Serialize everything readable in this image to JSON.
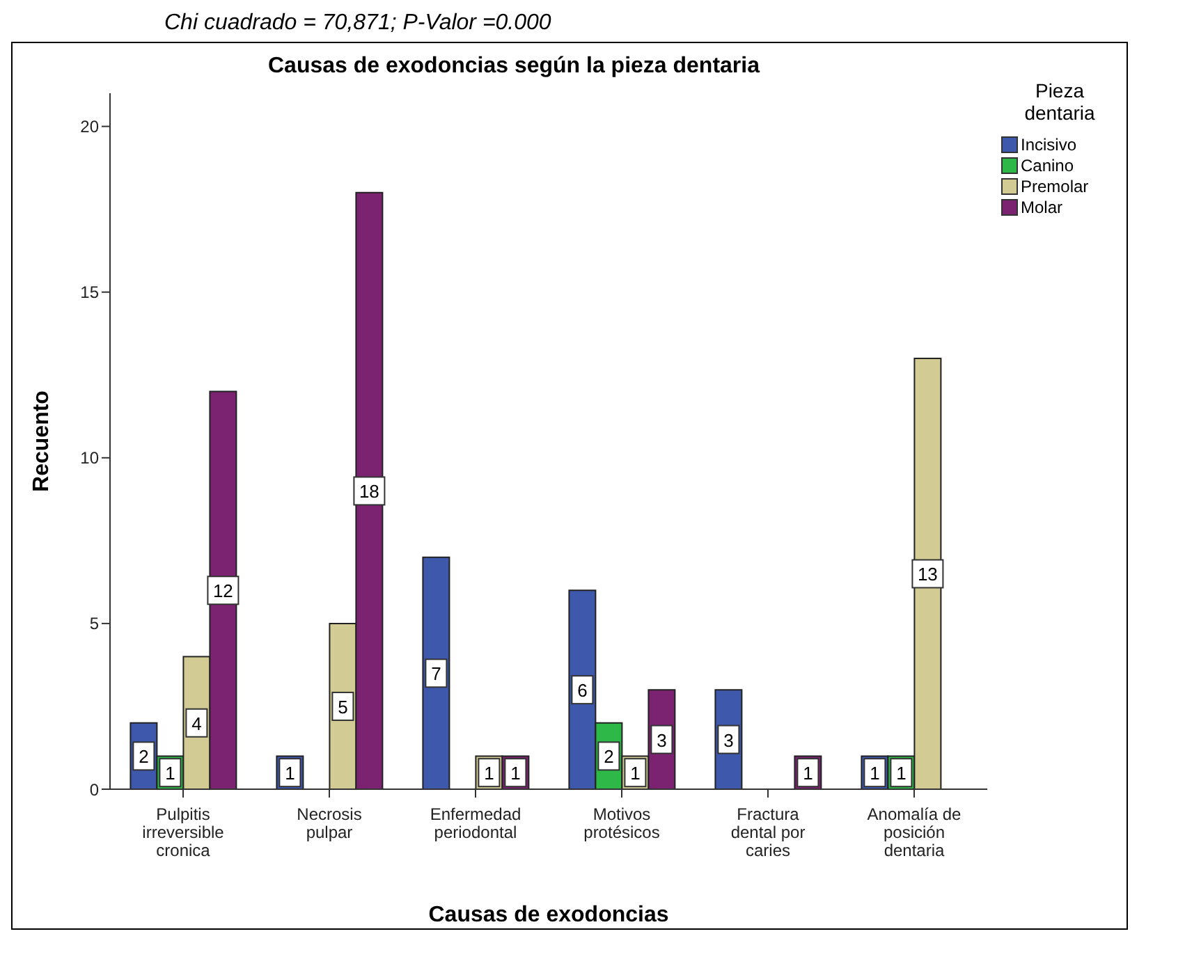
{
  "chart_data": {
    "type": "bar",
    "title": "Causas de exodoncias según la pieza dentaria",
    "xlabel": "Causas de exodoncias",
    "ylabel": "Recuento",
    "legend_title": "Pieza dentaria",
    "annotations": [
      "Chi cuadrado  = 70,871;    P-Valor =0.000"
    ],
    "categories": [
      "Pulpitis irreversible cronica",
      "Necrosis pulpar",
      "Enfermedad periodontal",
      "Motivos protésicos",
      "Fractura dental por caries",
      "Anomalía de posición dentaria"
    ],
    "series": [
      {
        "name": "Incisivo",
        "color": "#3e58ac",
        "values": [
          2,
          1,
          7,
          6,
          3,
          1
        ]
      },
      {
        "name": "Canino",
        "color": "#2eb848",
        "values": [
          1,
          null,
          null,
          2,
          null,
          1
        ]
      },
      {
        "name": "Premolar",
        "color": "#d2cc94",
        "values": [
          4,
          5,
          1,
          1,
          null,
          13
        ]
      },
      {
        "name": "Molar",
        "color": "#7b2271",
        "values": [
          12,
          18,
          1,
          3,
          1,
          null
        ]
      }
    ],
    "ylim": [
      0,
      21
    ],
    "yticks": [
      0,
      5,
      10,
      15,
      20
    ],
    "grid": false,
    "legend": "right",
    "data_labels": true
  }
}
